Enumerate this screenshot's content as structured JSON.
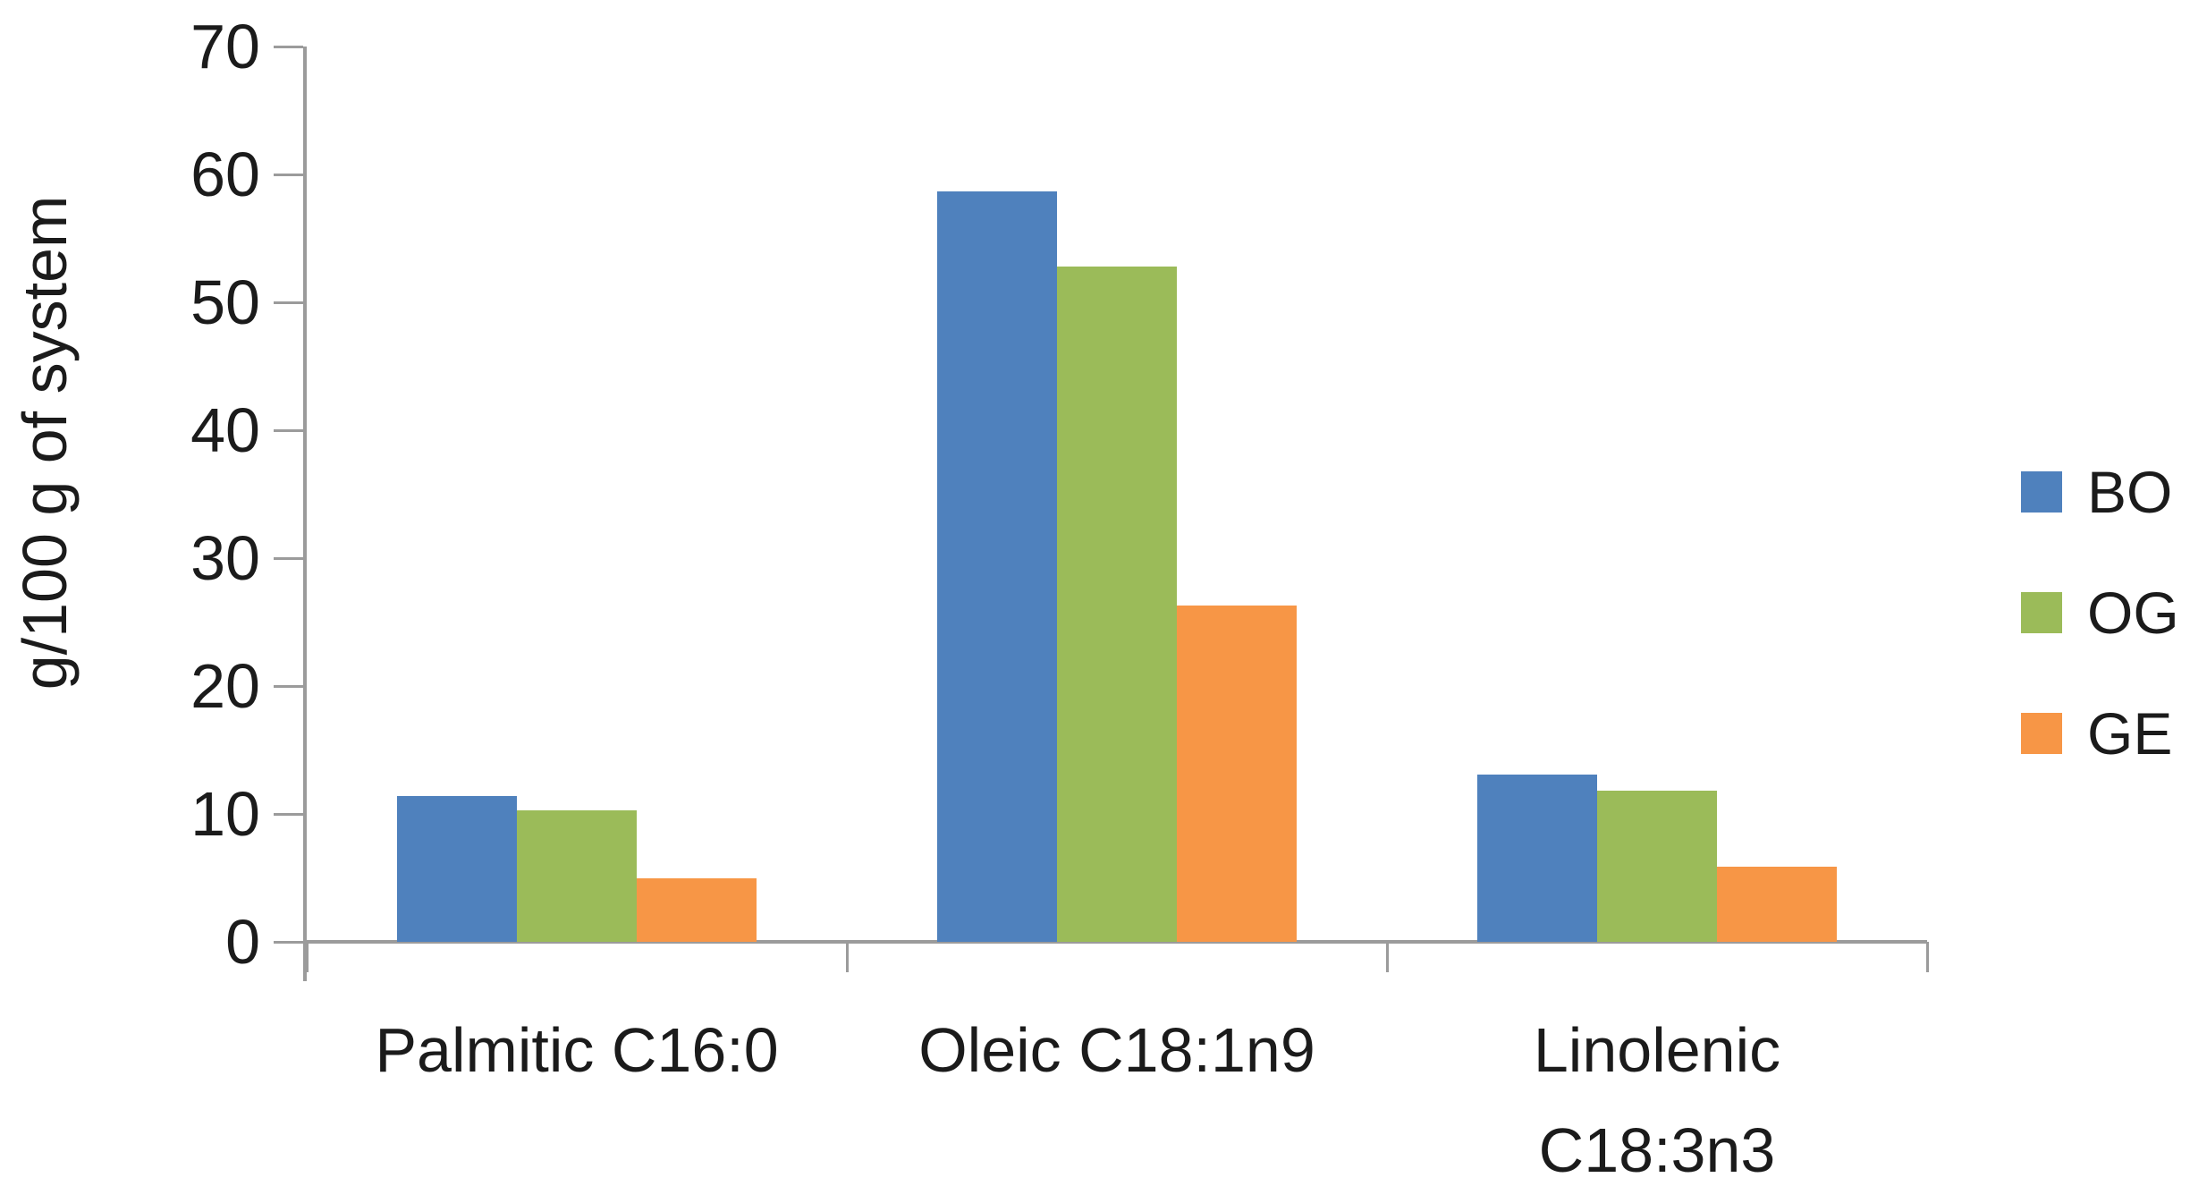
{
  "chart_data": {
    "type": "bar",
    "title": "",
    "xlabel": "",
    "ylabel": "g/100 g of system",
    "categories": [
      "Palmitic C16:0",
      "Oleic C18:1n9",
      "Linolenic C18:3n3"
    ],
    "category_label_lines": [
      [
        "Palmitic C16:0"
      ],
      [
        "Oleic C18:1n9"
      ],
      [
        "Linolenic",
        "C18:3n3"
      ]
    ],
    "series": [
      {
        "name": "BO",
        "color": "#4F81BD",
        "values": [
          11.4,
          58.7,
          13.1
        ]
      },
      {
        "name": "OG",
        "color": "#9BBB59",
        "values": [
          10.3,
          52.8,
          11.8
        ]
      },
      {
        "name": "GE",
        "color": "#F79646",
        "values": [
          5.0,
          26.3,
          5.9
        ]
      }
    ],
    "ylim": [
      0,
      70
    ],
    "yticks": [
      70,
      60,
      50,
      40,
      30,
      20,
      10,
      0
    ],
    "grid": false,
    "legend_position": "right",
    "legend_labels": [
      "BO",
      "OG",
      "GE"
    ],
    "axis_color": "#9B9B9B",
    "text_color": "#1B1B1B",
    "background": "#FFFFFF"
  }
}
